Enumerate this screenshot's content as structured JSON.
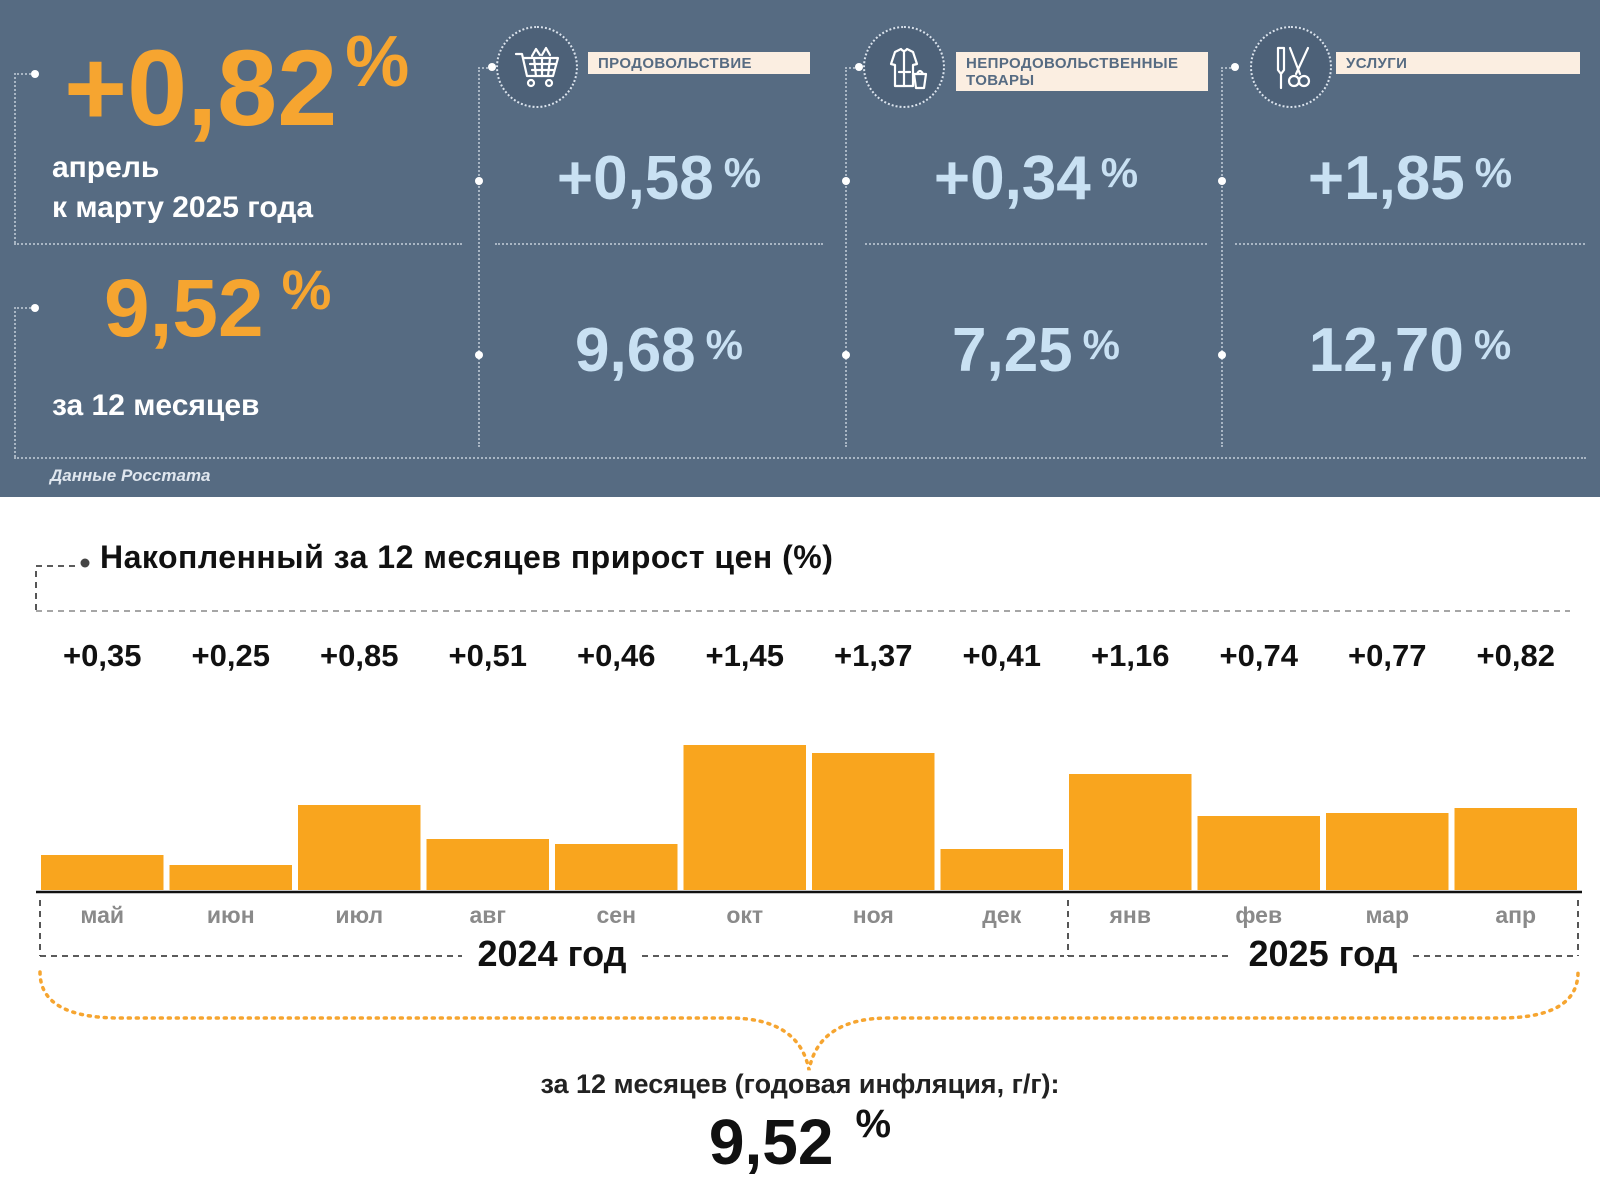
{
  "summary": {
    "monthly_value": "+0,82",
    "monthly_caption_line1": "апрель",
    "monthly_caption_line2": "к марту 2025 года",
    "annual_value": "9,52",
    "annual_caption": "за 12 месяцев",
    "percent_sign": "%",
    "source": "Данные Росстата"
  },
  "categories": [
    {
      "label_lines": [
        "ПРОДОВОЛЬСТВИЕ"
      ],
      "icon": "shopping-cart-icon",
      "monthly": "+0,58",
      "annual": "9,68"
    },
    {
      "label_lines": [
        "НЕПРОДОВОЛЬСТВЕННЫЕ",
        "ТОВАРЫ"
      ],
      "icon": "clothing-icon",
      "monthly": "+0,34",
      "annual": "7,25"
    },
    {
      "label_lines": [
        "УСЛУГИ"
      ],
      "icon": "tools-icon",
      "monthly": "+1,85",
      "annual": "12,70"
    }
  ],
  "chart_data": {
    "type": "bar",
    "title": "Накопленный за 12 месяцев прирост цен (%)",
    "categories": [
      "май",
      "июн",
      "июл",
      "авг",
      "сен",
      "окт",
      "ноя",
      "дек",
      "янв",
      "фев",
      "мар",
      "апр"
    ],
    "values": [
      0.35,
      0.25,
      0.85,
      0.51,
      0.46,
      1.45,
      1.37,
      0.41,
      1.16,
      0.74,
      0.77,
      0.82
    ],
    "value_labels": [
      "+0,35",
      "+0,25",
      "+0,85",
      "+0,51",
      "+0,46",
      "+1,45",
      "+1,37",
      "+0,41",
      "+1,16",
      "+0,74",
      "+0,77",
      "+0,82"
    ],
    "year_groups": [
      {
        "label": "2024 год",
        "months": 8
      },
      {
        "label": "2025 год",
        "months": 4
      }
    ],
    "bar_color": "#f9a51e",
    "grid": false
  },
  "annual_summary": {
    "label": "за 12 месяцев (годовая инфляция, г/г):",
    "value": "9,52",
    "percent_sign": "%"
  }
}
